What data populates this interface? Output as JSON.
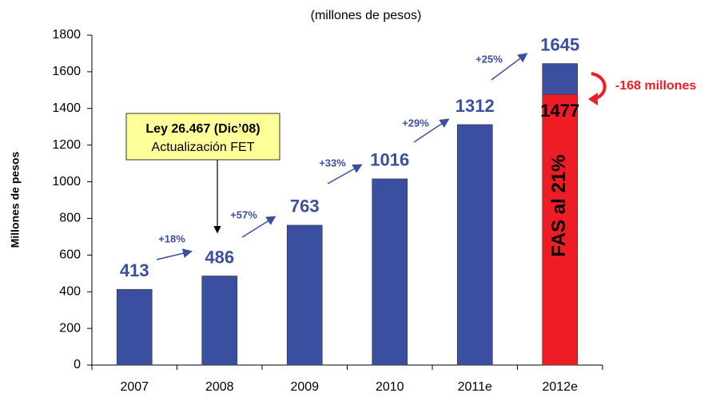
{
  "chart_data": {
    "type": "bar",
    "subtitle": "(millones de pesos)",
    "ylabel": "Millones de pesos",
    "categories": [
      "2007",
      "2008",
      "2009",
      "2010",
      "2011e",
      "2012e"
    ],
    "series": [
      {
        "name": "Total",
        "color": "#3a4fa0",
        "values": [
          413,
          486,
          763,
          1016,
          1312,
          1645
        ]
      },
      {
        "name": "FAS al 21%",
        "color": "#ee1c24",
        "values": [
          null,
          null,
          null,
          null,
          null,
          1477
        ]
      }
    ],
    "ylim": [
      0,
      1800
    ],
    "yticks": [
      0,
      200,
      400,
      600,
      800,
      1000,
      1200,
      1400,
      1600,
      1800
    ],
    "growth_labels": [
      "+18%",
      "+57%",
      "+33%",
      "+29%",
      "+25%"
    ],
    "box_title": "Ley 26.467 (Dic’08)",
    "box_text": "Actualización FET",
    "difference_label": "-168 millones"
  }
}
